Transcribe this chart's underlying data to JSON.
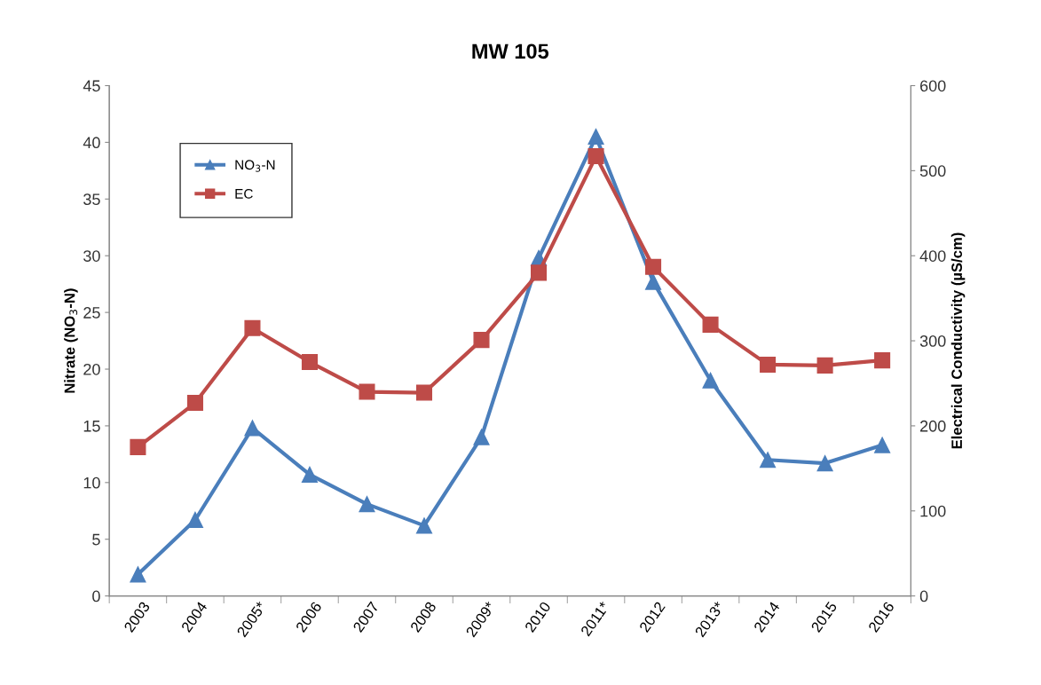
{
  "chart_data": {
    "type": "line",
    "title": "MW 105",
    "ylabel": "Nitrate (NO$_{3}$-N)",
    "y2label": "Electrical Conductivity (µS/cm)",
    "categories": [
      "2003",
      "2004",
      "2005*",
      "2006",
      "2007",
      "2008",
      "2009*",
      "2010",
      "2011*",
      "2012",
      "2013*",
      "2014",
      "2015",
      "2016"
    ],
    "series": [
      {
        "name": "NO$_{3}$-N",
        "color": "#4a7ebb",
        "marker": "triangle",
        "values": [
          1.9,
          6.7,
          14.8,
          10.7,
          8.1,
          6.2,
          14.0,
          29.8,
          40.5,
          27.7,
          19.0,
          12.0,
          11.7,
          13.3
        ]
      },
      {
        "name": "EC",
        "color": "#be4b48",
        "marker": "square",
        "axis": "y2",
        "values": [
          175,
          227,
          315,
          275,
          240,
          239,
          301,
          380,
          517,
          387,
          319,
          272,
          271,
          277
        ]
      }
    ],
    "ylim": [
      0,
      45
    ],
    "yticks": [
      0,
      5,
      10,
      15,
      20,
      25,
      30,
      35,
      40,
      45
    ],
    "y2lim": [
      0,
      600
    ],
    "y2ticks": [
      0,
      100,
      200,
      300,
      400,
      500,
      600
    ],
    "grid": false,
    "legend": "top left",
    "line_style": "solid"
  }
}
